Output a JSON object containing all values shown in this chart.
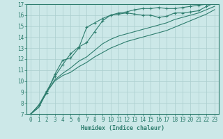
{
  "xlabel": "Humidex (Indice chaleur)",
  "ylabel": "",
  "xlim": [
    -0.5,
    23.5
  ],
  "ylim": [
    7,
    17
  ],
  "xticks": [
    0,
    1,
    2,
    3,
    4,
    5,
    6,
    7,
    8,
    9,
    10,
    11,
    12,
    13,
    14,
    15,
    16,
    17,
    18,
    19,
    20,
    21,
    22,
    23
  ],
  "yticks": [
    7,
    8,
    9,
    10,
    11,
    12,
    13,
    14,
    15,
    16,
    17
  ],
  "bg_color": "#cce8e8",
  "line_color": "#2e7d6e",
  "grid_color": "#aacece",
  "series": [
    [
      7.0,
      7.8,
      8.9,
      10.6,
      11.9,
      12.1,
      13.0,
      14.9,
      15.3,
      15.7,
      16.0,
      16.1,
      16.2,
      16.1,
      16.0,
      16.0,
      15.8,
      15.9,
      16.2,
      16.2,
      16.3,
      16.4,
      16.8,
      17.1
    ],
    [
      7.0,
      7.8,
      9.1,
      10.4,
      11.5,
      12.5,
      13.1,
      13.5,
      14.5,
      15.5,
      16.0,
      16.2,
      16.3,
      16.5,
      16.6,
      16.6,
      16.7,
      16.6,
      16.6,
      16.7,
      16.8,
      16.9,
      17.0,
      17.2
    ],
    [
      7.0,
      7.6,
      9.0,
      10.1,
      10.7,
      11.2,
      11.8,
      12.2,
      12.8,
      13.4,
      13.8,
      14.1,
      14.3,
      14.5,
      14.7,
      14.9,
      15.1,
      15.3,
      15.6,
      15.8,
      16.0,
      16.2,
      16.5,
      16.8
    ],
    [
      7.0,
      7.6,
      9.0,
      10.0,
      10.5,
      10.8,
      11.3,
      11.7,
      12.2,
      12.6,
      13.0,
      13.3,
      13.6,
      13.8,
      14.0,
      14.2,
      14.4,
      14.6,
      14.9,
      15.2,
      15.5,
      15.8,
      16.1,
      16.5
    ]
  ],
  "markers": [
    true,
    true,
    false,
    false
  ],
  "marker_symbol": "+",
  "markersize": 3,
  "linewidth": 0.8,
  "tick_fontsize": 5.5,
  "xlabel_fontsize": 6.0
}
